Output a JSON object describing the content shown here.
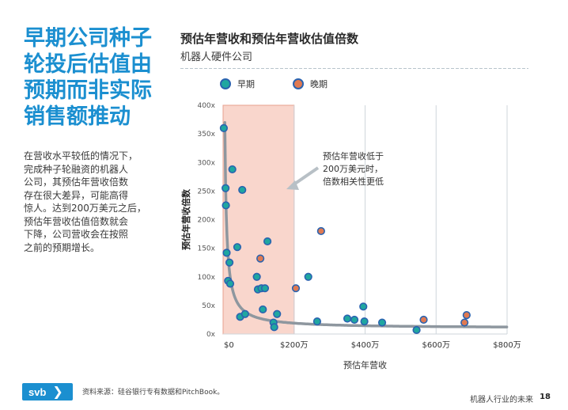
{
  "left": {
    "title": "早期公司种子\n轮投后估值由\n预期而非实际\n销售额推动",
    "body": "在营收水平较低的情况下，\n完成种子轮融资的机器人\n公司，其预估年营收倍数\n存在很大差异，可能高得\n惊人。达到200万美元之后，\n预估年营收估值倍数就会\n下降，公司营收会在按照\n之前的预期增长。"
  },
  "chart_data": {
    "type": "scatter",
    "title": "预估年营收和预估年营收估值倍数",
    "subtitle": "机器人硬件公司",
    "xlabel": "预估年营收",
    "ylabel": "预估年营收倍数",
    "xlim": [
      0,
      800
    ],
    "ylim": [
      0,
      400
    ],
    "x_ticks": [
      "$0",
      "$200万",
      "$400万",
      "$600万",
      "$800万"
    ],
    "y_ticks": [
      "0x",
      "50x",
      "100x",
      "150x",
      "200x",
      "250x",
      "300x",
      "350x",
      "400x"
    ],
    "shaded_region": [
      0,
      200
    ],
    "annotation": "预估年营收低于\n200万美元时，\n倍数相关性更低",
    "colors": {
      "early_fill": "#1fa7a0",
      "late_fill": "#e07a52",
      "border": "#2a63b0",
      "trend": "#8e979f",
      "shade": "#f9d6cc"
    },
    "series": [
      {
        "name": "早期",
        "points": [
          [
            2,
            360
          ],
          [
            7,
            255
          ],
          [
            8,
            225
          ],
          [
            10,
            142
          ],
          [
            14,
            93
          ],
          [
            18,
            125
          ],
          [
            20,
            88
          ],
          [
            26,
            288
          ],
          [
            40,
            152
          ],
          [
            48,
            30
          ],
          [
            54,
            252
          ],
          [
            62,
            35
          ],
          [
            95,
            100
          ],
          [
            98,
            78
          ],
          [
            108,
            80
          ],
          [
            112,
            43
          ],
          [
            118,
            80
          ],
          [
            125,
            162
          ],
          [
            142,
            20
          ],
          [
            144,
            12
          ],
          [
            152,
            35
          ],
          [
            240,
            100
          ],
          [
            265,
            22
          ],
          [
            350,
            27
          ],
          [
            370,
            25
          ],
          [
            395,
            48
          ],
          [
            398,
            22
          ],
          [
            448,
            20
          ],
          [
            545,
            7
          ]
        ]
      },
      {
        "name": "晚期",
        "points": [
          [
            105,
            132
          ],
          [
            205,
            80
          ],
          [
            276,
            180
          ],
          [
            565,
            25
          ],
          [
            680,
            20
          ],
          [
            686,
            33
          ]
        ]
      }
    ],
    "trend": "y = a / x (smooth decay)"
  },
  "footer": {
    "logo_text": "svb",
    "logo_chevron": "❯",
    "source": "资料来源：硅谷银行专有数据和PitchBook。",
    "right_text": "机器人行业的未来",
    "page": "18"
  }
}
